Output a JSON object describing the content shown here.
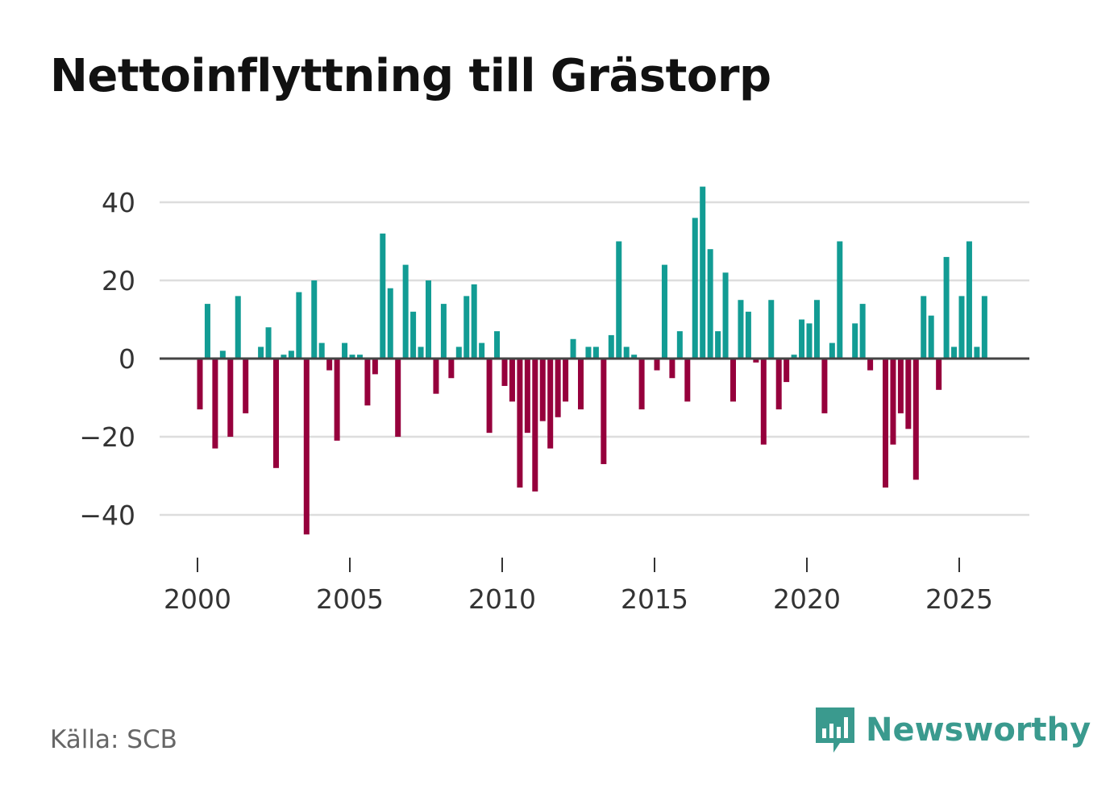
{
  "title": "Nettoinflyttning till Grästorp",
  "source": "Källa: SCB",
  "brand": "Newsworthy",
  "colors": {
    "positive": "#129c94",
    "negative": "#96003c",
    "grid": "#dddddd",
    "zero_line": "#444444",
    "brand": "#3a9a8e"
  },
  "chart_data": {
    "type": "bar",
    "title": "Nettoinflyttning till Grästorp",
    "xlabel": "",
    "ylabel": "",
    "x_start": 2000.0,
    "x_step": 0.25,
    "xlim": [
      1998.8,
      2027.3
    ],
    "ylim": [
      -48,
      44
    ],
    "y_ticks": [
      40,
      20,
      0,
      -20,
      -40
    ],
    "y_tick_labels": [
      "40",
      "20",
      "0",
      "−20",
      "−40"
    ],
    "x_ticks": [
      2000,
      2005,
      2010,
      2015,
      2020,
      2025
    ],
    "x_tick_labels": [
      "2000",
      "2005",
      "2010",
      "2015",
      "2020",
      "2025"
    ],
    "grid": true,
    "values": [
      -13,
      14,
      -23,
      2,
      -20,
      16,
      -14,
      0,
      3,
      8,
      -28,
      1,
      2,
      17,
      -45,
      20,
      4,
      -3,
      -21,
      4,
      1,
      1,
      -12,
      -4,
      32,
      18,
      -20,
      24,
      12,
      3,
      20,
      -9,
      14,
      -5,
      3,
      16,
      19,
      4,
      -19,
      7,
      -7,
      -11,
      -33,
      -19,
      -34,
      -16,
      -23,
      -15,
      -11,
      5,
      -13,
      3,
      3,
      -27,
      6,
      30,
      3,
      1,
      -13,
      0,
      -3,
      24,
      -5,
      7,
      -11,
      36,
      44,
      28,
      7,
      22,
      -11,
      15,
      12,
      -1,
      -22,
      15,
      -13,
      -6,
      1,
      10,
      9,
      15,
      -14,
      4,
      30,
      0,
      9,
      14,
      -3,
      0,
      -33,
      -22,
      -14,
      -18,
      -31,
      16,
      11,
      -8,
      26,
      3,
      16,
      30,
      3,
      16
    ]
  }
}
